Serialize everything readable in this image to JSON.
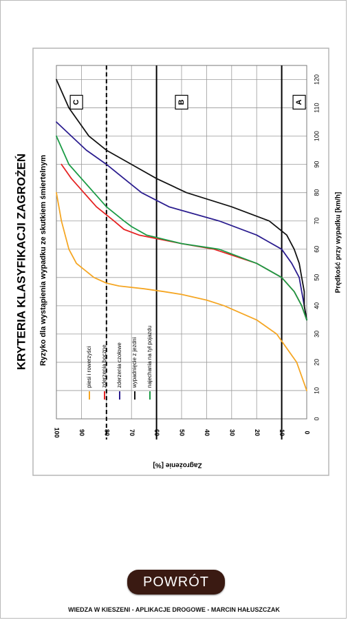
{
  "chart_data": {
    "type": "line",
    "title": "KRYTERIA KLASYFIKACJI ZAGROŻEŃ",
    "subtitle": "Ryzyko dla wystąpienia wypadku ze skutkiem śmiertelnym",
    "xlabel": "Prędkość przy wypadku [km/h]",
    "ylabel": "Zagrożenie [%]",
    "xlim": [
      0,
      125
    ],
    "ylim": [
      0,
      100
    ],
    "x_ticks": [
      0,
      10,
      20,
      30,
      40,
      50,
      60,
      70,
      80,
      90,
      100,
      110,
      120
    ],
    "y_ticks": [
      0,
      10,
      20,
      30,
      40,
      50,
      60,
      70,
      80,
      90,
      100
    ],
    "grid": true,
    "thresholds": [
      {
        "value": 10,
        "style": "solid"
      },
      {
        "value": 60,
        "style": "solid"
      },
      {
        "value": 80,
        "style": "dashed"
      }
    ],
    "zones": [
      {
        "label": "A",
        "x": 112,
        "y": 3
      },
      {
        "label": "B",
        "x": 112,
        "y": 50
      },
      {
        "label": "C",
        "x": 112,
        "y": 92
      }
    ],
    "series": [
      {
        "name": "piesi i rowerzyści",
        "color": "#f5a623",
        "x": [
          10,
          20,
          30,
          35,
          40,
          42,
          44,
          45,
          46,
          47,
          48,
          50,
          55,
          60,
          70,
          80
        ],
        "y": [
          0,
          4,
          12,
          20,
          33,
          40,
          50,
          57,
          65,
          75,
          80,
          85,
          92,
          95,
          98,
          100
        ]
      },
      {
        "name": "zderzenia boczne",
        "color": "#e52222",
        "x": [
          35,
          40,
          45,
          50,
          55,
          60,
          62,
          65,
          67,
          70,
          75,
          80,
          85,
          90
        ],
        "y": [
          0,
          2,
          5,
          10,
          20,
          37,
          50,
          67,
          73,
          77,
          84,
          89,
          94,
          98
        ]
      },
      {
        "name": "zderzenia czołowe",
        "color": "#2b1d8f",
        "x": [
          35,
          40,
          45,
          50,
          55,
          60,
          65,
          70,
          75,
          80,
          85,
          90,
          95,
          100,
          105
        ],
        "y": [
          0,
          1,
          2,
          3,
          6,
          10,
          20,
          35,
          55,
          66,
          73,
          80,
          88,
          94,
          100
        ]
      },
      {
        "name": "wypadnięcie z jezdni",
        "color": "#111111",
        "x": [
          35,
          40,
          45,
          50,
          55,
          60,
          65,
          70,
          75,
          80,
          85,
          90,
          95,
          100,
          110,
          120
        ],
        "y": [
          0,
          1,
          1,
          2,
          3,
          5,
          8,
          15,
          30,
          48,
          60,
          70,
          80,
          87,
          95,
          100
        ]
      },
      {
        "name": "najechania na tył pojazdu",
        "color": "#1a9b45",
        "x": [
          35,
          40,
          45,
          50,
          55,
          60,
          62,
          65,
          68,
          70,
          75,
          80,
          85,
          90,
          100
        ],
        "y": [
          0,
          2,
          5,
          10,
          20,
          35,
          50,
          64,
          70,
          73,
          80,
          85,
          90,
          95,
          100
        ]
      }
    ]
  },
  "nav": {
    "back_label": "POWRÓT"
  },
  "footer": {
    "text": "WIEDZA W KIESZENI  -  APLIKACJE DROGOWE  -  MARCIN HAŁUSZCZAK"
  }
}
